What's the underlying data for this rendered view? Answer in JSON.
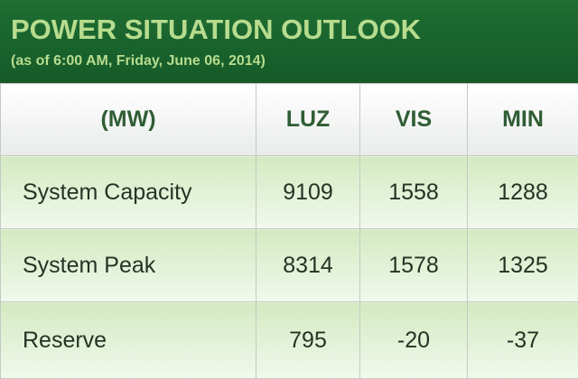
{
  "header": {
    "title": "POWER SITUATION OUTLOOK",
    "subtitle": "(as of 6:00 AM, Friday, June 06, 2014)"
  },
  "table": {
    "columns": [
      "(MW)",
      "LUZ",
      "VIS",
      "MIN"
    ],
    "rows": [
      [
        "System Capacity",
        9109,
        1558,
        1288
      ],
      [
        "System Peak",
        8314,
        1578,
        1325
      ],
      [
        "Reserve",
        795,
        -20,
        -37
      ]
    ]
  }
}
